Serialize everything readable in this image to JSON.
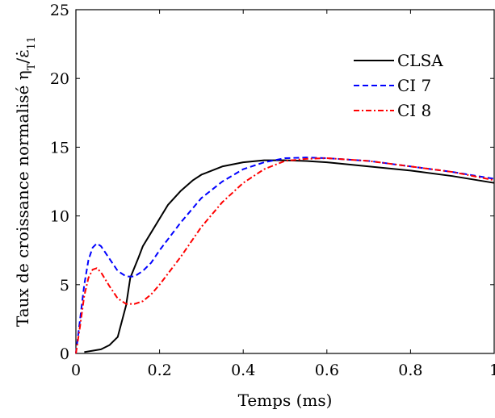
{
  "chart_data": {
    "type": "line",
    "xlabel": "Temps (ms)",
    "ylabel": "Taux de croissance normalisé η",
    "ylabel_sub": "T",
    "ylabel_mid": "/ε̇",
    "ylabel_sub2": "11",
    "xlim": [
      0,
      1
    ],
    "ylim": [
      0,
      25
    ],
    "x_ticks": [
      "0",
      "0.2",
      "0.4",
      "0.6",
      "0.8",
      "1"
    ],
    "x_tick_values": [
      0,
      0.2,
      0.4,
      0.6,
      0.8,
      1
    ],
    "y_ticks": [
      "0",
      "5",
      "10",
      "15",
      "20",
      "25"
    ],
    "y_tick_values": [
      0,
      5,
      10,
      15,
      20,
      25
    ],
    "grid": false,
    "legend_position": "top-right",
    "series": [
      {
        "name": "CLSA",
        "color": "#000000",
        "dash": "solid",
        "x": [
          0.02,
          0.04,
          0.06,
          0.08,
          0.1,
          0.12,
          0.13,
          0.15,
          0.16,
          0.18,
          0.2,
          0.22,
          0.25,
          0.28,
          0.3,
          0.35,
          0.4,
          0.45,
          0.5,
          0.55,
          0.6,
          0.7,
          0.8,
          0.9,
          1.0
        ],
        "y": [
          0.1,
          0.2,
          0.3,
          0.6,
          1.2,
          3.5,
          5.5,
          7.0,
          7.8,
          8.8,
          9.8,
          10.8,
          11.8,
          12.6,
          13.0,
          13.6,
          13.9,
          14.05,
          14.05,
          14.0,
          13.9,
          13.6,
          13.3,
          12.9,
          12.4
        ]
      },
      {
        "name": "CI 7",
        "color": "#0000ff",
        "dash": "dashed",
        "x": [
          0.0,
          0.01,
          0.02,
          0.03,
          0.04,
          0.05,
          0.06,
          0.08,
          0.1,
          0.12,
          0.14,
          0.16,
          0.18,
          0.2,
          0.25,
          0.3,
          0.35,
          0.4,
          0.45,
          0.5,
          0.55,
          0.6,
          0.7,
          0.8,
          0.9,
          1.0
        ],
        "y": [
          0.0,
          2.5,
          5.0,
          6.8,
          7.7,
          8.0,
          7.8,
          6.9,
          6.0,
          5.6,
          5.6,
          6.0,
          6.6,
          7.5,
          9.5,
          11.3,
          12.5,
          13.4,
          13.9,
          14.2,
          14.25,
          14.2,
          14.0,
          13.6,
          13.2,
          12.7
        ]
      },
      {
        "name": "CI 8",
        "color": "#ff0000",
        "dash": "dashdot",
        "x": [
          0.0,
          0.01,
          0.02,
          0.03,
          0.04,
          0.05,
          0.06,
          0.08,
          0.1,
          0.12,
          0.14,
          0.16,
          0.18,
          0.2,
          0.25,
          0.3,
          0.35,
          0.4,
          0.45,
          0.5,
          0.55,
          0.6,
          0.7,
          0.8,
          0.9,
          1.0
        ],
        "y": [
          0.0,
          2.0,
          4.2,
          5.5,
          6.1,
          6.2,
          5.9,
          4.9,
          4.0,
          3.6,
          3.6,
          3.8,
          4.3,
          5.0,
          7.0,
          9.2,
          11.0,
          12.4,
          13.4,
          14.0,
          14.15,
          14.2,
          14.0,
          13.6,
          13.2,
          12.6
        ]
      }
    ]
  }
}
